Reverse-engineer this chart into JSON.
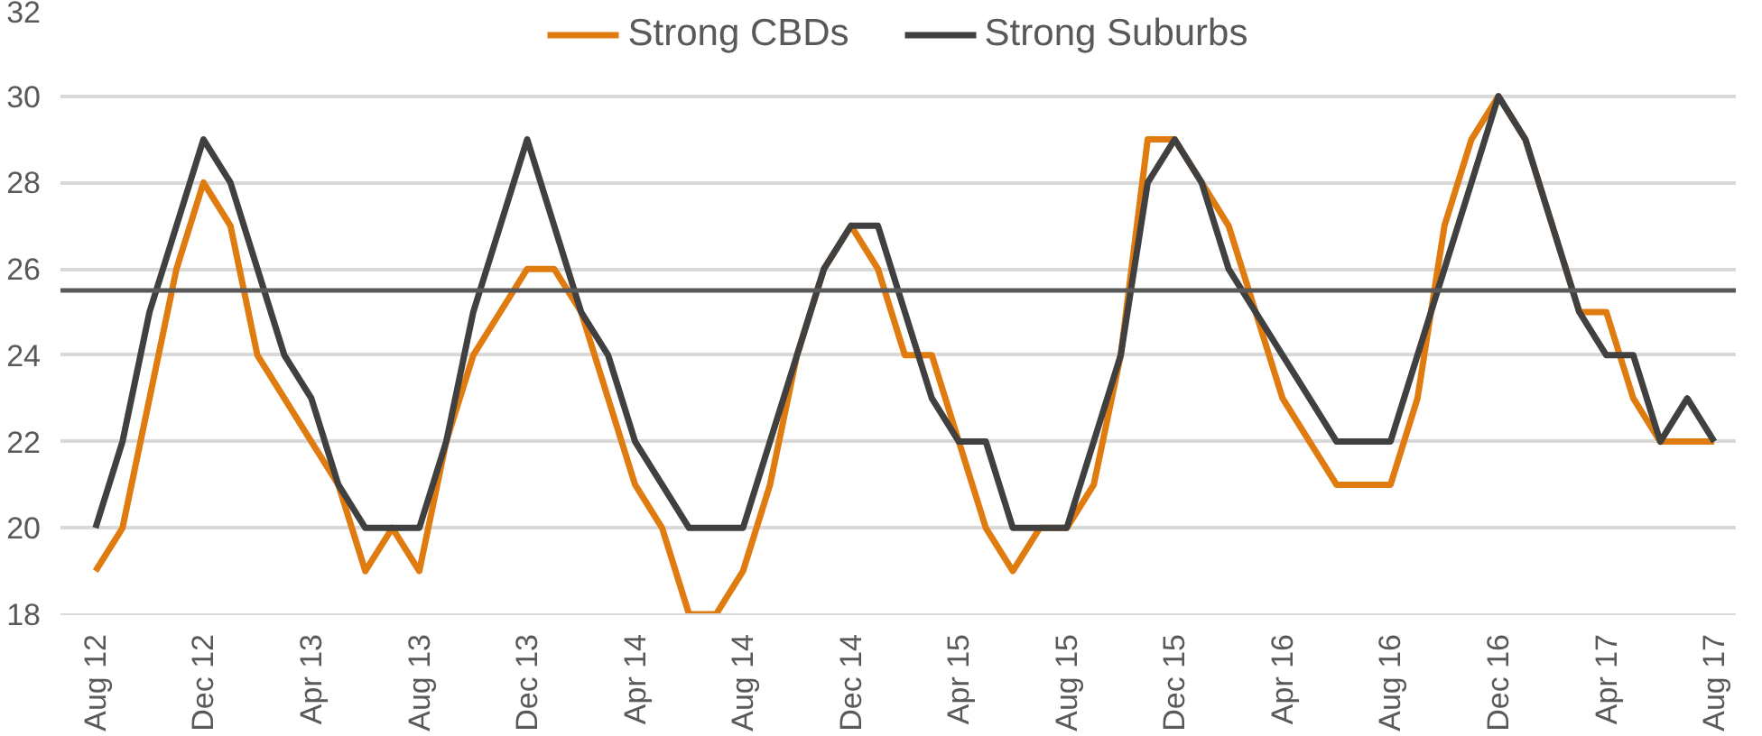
{
  "chart_data": {
    "type": "line",
    "categories": [
      "Aug 12",
      null,
      null,
      null,
      "Dec 12",
      null,
      null,
      null,
      "Apr 13",
      null,
      null,
      null,
      "Aug 13",
      null,
      null,
      null,
      "Dec 13",
      null,
      null,
      null,
      "Apr 14",
      null,
      null,
      null,
      "Aug 14",
      null,
      null,
      null,
      "Dec 14",
      null,
      null,
      null,
      "Apr 15",
      null,
      null,
      null,
      "Aug 15",
      null,
      null,
      null,
      "Dec 15",
      null,
      null,
      null,
      "Apr 16",
      null,
      null,
      null,
      "Aug 16",
      null,
      null,
      null,
      "Dec 16",
      null,
      null,
      null,
      "Apr 17",
      null,
      null,
      null,
      "Aug 17"
    ],
    "series": [
      {
        "name": "Strong CBDs",
        "color": "#e07b10",
        "values": [
          19,
          20,
          23,
          26,
          28,
          27,
          24,
          23,
          22,
          21,
          19,
          20,
          19,
          22,
          24,
          25,
          26,
          26,
          25,
          23,
          21,
          20,
          18,
          18,
          19,
          21,
          24,
          26,
          27,
          26,
          24,
          24,
          22,
          20,
          19,
          20,
          20,
          21,
          24,
          29,
          29,
          28,
          27,
          25,
          23,
          22,
          21,
          21,
          21,
          23,
          27,
          29,
          30,
          29,
          27,
          25,
          25,
          23,
          22,
          22,
          22
        ]
      },
      {
        "name": "Strong Suburbs",
        "color": "#404040",
        "values": [
          20,
          22,
          25,
          27,
          29,
          28,
          26,
          24,
          23,
          21,
          20,
          20,
          20,
          22,
          25,
          27,
          29,
          27,
          25,
          24,
          22,
          21,
          20,
          20,
          20,
          22,
          24,
          26,
          27,
          27,
          25,
          23,
          22,
          22,
          20,
          20,
          20,
          22,
          24,
          28,
          29,
          28,
          26,
          25,
          24,
          23,
          22,
          22,
          22,
          24,
          26,
          28,
          30,
          29,
          27,
          25,
          24,
          24,
          22,
          23,
          22
        ]
      }
    ],
    "ylim": [
      18,
      32
    ],
    "yticks": [
      18,
      20,
      22,
      24,
      26,
      28,
      30,
      32
    ],
    "ref_lines": [
      {
        "axis": "y",
        "value": 25.5,
        "color": "#595959"
      }
    ],
    "grid": "y",
    "legend": "top",
    "line_style": "solid",
    "marker": "none"
  }
}
